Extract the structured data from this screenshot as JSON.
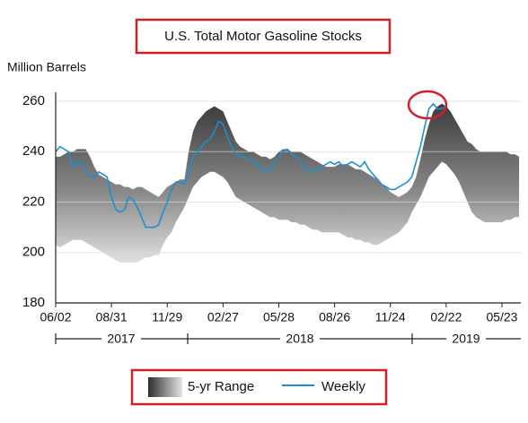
{
  "chart_data": {
    "type": "line",
    "title": "U.S. Total Motor Gasoline Stocks",
    "y_label": "Million Barrels",
    "ylim": [
      180,
      260
    ],
    "yticks": [
      180,
      200,
      220,
      240,
      260
    ],
    "grid": true,
    "categories": [
      "06/02",
      null,
      null,
      null,
      null,
      null,
      null,
      null,
      null,
      null,
      null,
      null,
      null,
      "08/31",
      null,
      null,
      null,
      null,
      null,
      null,
      null,
      null,
      null,
      null,
      null,
      null,
      "11/29",
      null,
      null,
      null,
      null,
      null,
      null,
      null,
      null,
      null,
      null,
      null,
      null,
      "02/27",
      null,
      null,
      null,
      null,
      null,
      null,
      null,
      null,
      null,
      null,
      null,
      null,
      "05/28",
      null,
      null,
      null,
      null,
      null,
      null,
      null,
      null,
      null,
      null,
      null,
      null,
      "08/26",
      null,
      null,
      null,
      null,
      null,
      null,
      null,
      null,
      null,
      null,
      null,
      null,
      "11/24",
      null,
      null,
      null,
      null,
      null,
      null,
      null,
      null,
      null,
      null,
      null,
      null,
      "02/22",
      null,
      null,
      null,
      null,
      null,
      null,
      null,
      null,
      null,
      null,
      null,
      null,
      "05/23",
      null,
      null,
      null,
      null
    ],
    "x_groups": [
      "2017",
      "2018",
      "2019"
    ],
    "series": [
      {
        "name": "5-yr Range",
        "color": "#555555",
        "upper": [
          238,
          238,
          239,
          240,
          240,
          241,
          241,
          241,
          238,
          234,
          231,
          230,
          229,
          228,
          227,
          227,
          226,
          226,
          225,
          226,
          226,
          225,
          224,
          223,
          222,
          224,
          226,
          227,
          228,
          229,
          229,
          240,
          248,
          252,
          254,
          256,
          257,
          258,
          257,
          256,
          252,
          248,
          244,
          242,
          241,
          240,
          240,
          239,
          238,
          238,
          237,
          238,
          240,
          241,
          241,
          240,
          240,
          240,
          239,
          238,
          237,
          236,
          235,
          234,
          234,
          234,
          235,
          235,
          235,
          234,
          233,
          233,
          232,
          231,
          230,
          229,
          227,
          226,
          224,
          223,
          222,
          223,
          224,
          226,
          230,
          237,
          245,
          251,
          256,
          258,
          259,
          258,
          256,
          253,
          250,
          247,
          244,
          243,
          241,
          240,
          240,
          240,
          240,
          240,
          240,
          240,
          239,
          239,
          238
        ],
        "lower": [
          203,
          202,
          203,
          204,
          205,
          205,
          205,
          204,
          203,
          202,
          201,
          200,
          199,
          198,
          197,
          196,
          196,
          196,
          196,
          196,
          197,
          198,
          198,
          199,
          199,
          203,
          206,
          208,
          212,
          215,
          218,
          222,
          226,
          228,
          230,
          231,
          232,
          232,
          231,
          230,
          228,
          225,
          222,
          221,
          220,
          219,
          218,
          217,
          216,
          215,
          214,
          214,
          213,
          213,
          213,
          212,
          212,
          211,
          211,
          210,
          209,
          209,
          208,
          208,
          208,
          208,
          208,
          207,
          206,
          206,
          205,
          205,
          204,
          204,
          203,
          203,
          204,
          205,
          206,
          207,
          208,
          210,
          212,
          216,
          219,
          222,
          226,
          230,
          232,
          234,
          236,
          235,
          233,
          231,
          228,
          224,
          220,
          216,
          214,
          213,
          212,
          212,
          212,
          212,
          212,
          213,
          213,
          214,
          214
        ]
      },
      {
        "name": "Weekly",
        "color": "#1c8fd0",
        "values": [
          240,
          242,
          241,
          240,
          234,
          236,
          236,
          232,
          230,
          230,
          232,
          231,
          230,
          222,
          217,
          216,
          217,
          222,
          221,
          218,
          214,
          210,
          210,
          210,
          211,
          216,
          220,
          225,
          228,
          228,
          227,
          232,
          238,
          240,
          242,
          244,
          245,
          248,
          252,
          251,
          246,
          242,
          239,
          238,
          238,
          237,
          236,
          235,
          233,
          232,
          233,
          236,
          238,
          240,
          241,
          239,
          238,
          236,
          234,
          232,
          232,
          233,
          234,
          235,
          236,
          235,
          236,
          234,
          235,
          236,
          235,
          234,
          236,
          233,
          231,
          229,
          227,
          226,
          225,
          225,
          226,
          227,
          228,
          230,
          236,
          242,
          250,
          257,
          259,
          257,
          257,
          258,
          null,
          null,
          null,
          null,
          null,
          null,
          null,
          null,
          null,
          null,
          null,
          null,
          null,
          null,
          null,
          null,
          null
        ]
      }
    ]
  }
}
